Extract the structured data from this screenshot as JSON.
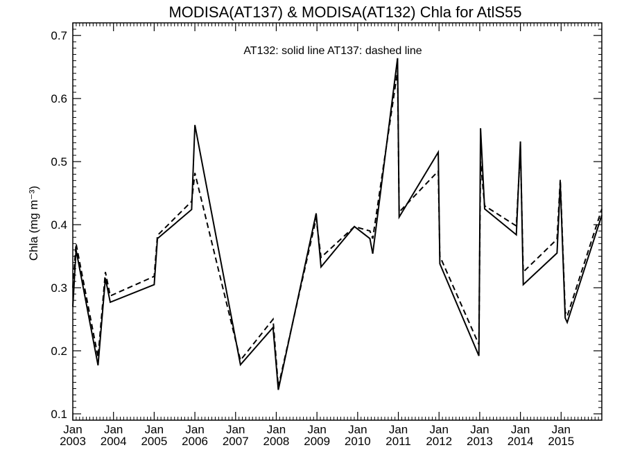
{
  "chart_data": {
    "type": "line",
    "title": "MODISA(AT137) & MODISA(AT132)  Chla for AtlS55",
    "xlabel": "",
    "ylabel": "Chla (mg m⁻³)",
    "xlim": [
      2003.0,
      2016.0
    ],
    "ylim": [
      0.09,
      0.72
    ],
    "yticks": [
      "0.1",
      "0.2",
      "0.3",
      "0.4",
      "0.5",
      "0.6",
      "0.7"
    ],
    "xticks": [
      {
        "top": "Jan",
        "bottom": "2003",
        "x": 2003
      },
      {
        "top": "Jan",
        "bottom": "2004",
        "x": 2004
      },
      {
        "top": "Jan",
        "bottom": "2005",
        "x": 2005
      },
      {
        "top": "Jan",
        "bottom": "2006",
        "x": 2006
      },
      {
        "top": "Jan",
        "bottom": "2007",
        "x": 2007
      },
      {
        "top": "Jan",
        "bottom": "2008",
        "x": 2008
      },
      {
        "top": "Jan",
        "bottom": "2009",
        "x": 2009
      },
      {
        "top": "Jan",
        "bottom": "2010",
        "x": 2010
      },
      {
        "top": "Jan",
        "bottom": "2011",
        "x": 2011
      },
      {
        "top": "Jan",
        "bottom": "2012",
        "x": 2012
      },
      {
        "top": "Jan",
        "bottom": "2013",
        "x": 2013
      },
      {
        "top": "Jan",
        "bottom": "2014",
        "x": 2014
      },
      {
        "top": "Jan",
        "bottom": "2015",
        "x": 2015
      }
    ],
    "annotation": "AT132: solid line   AT137: dashed line",
    "series": [
      {
        "style": "solid",
        "x": [
          2003.0,
          2003.08,
          2003.62,
          2003.8,
          2003.92,
          2005.0,
          2005.08,
          2005.92,
          2006.0,
          2007.12,
          2007.92,
          2008.05,
          2008.98,
          2009.1,
          2009.92,
          2010.3,
          2010.37,
          2010.98,
          2011.02,
          2011.98,
          2012.02,
          2012.98,
          2013.02,
          2013.12,
          2013.9,
          2014.0,
          2014.07,
          2014.9,
          2014.98,
          2015.1,
          2015.15,
          2016.0
        ],
        "y": [
          0.27,
          0.36,
          0.177,
          0.315,
          0.277,
          0.305,
          0.378,
          0.424,
          0.558,
          0.178,
          0.237,
          0.138,
          0.418,
          0.333,
          0.397,
          0.378,
          0.354,
          0.664,
          0.412,
          0.515,
          0.338,
          0.192,
          0.553,
          0.425,
          0.384,
          0.532,
          0.305,
          0.355,
          0.465,
          0.252,
          0.245,
          0.415
        ]
      },
      {
        "style": "dashed",
        "x": [
          2003.0,
          2003.08,
          2003.62,
          2003.8,
          2003.92,
          2005.0,
          2005.08,
          2005.92,
          2006.0,
          2007.12,
          2007.92,
          2008.05,
          2008.98,
          2009.1,
          2009.92,
          2010.3,
          2010.37,
          2010.98,
          2011.02,
          2011.98,
          2012.02,
          2012.98,
          2013.02,
          2013.12,
          2013.9,
          2014.0,
          2014.07,
          2014.9,
          2014.98,
          2015.1,
          2015.15,
          2016.0
        ],
        "y": [
          0.3,
          0.37,
          0.19,
          0.325,
          0.287,
          0.318,
          0.383,
          0.437,
          0.482,
          0.185,
          0.25,
          0.143,
          0.41,
          0.348,
          0.397,
          0.39,
          0.378,
          0.644,
          0.42,
          0.485,
          0.35,
          0.21,
          0.5,
          0.43,
          0.398,
          0.52,
          0.325,
          0.377,
          0.472,
          0.262,
          0.255,
          0.425
        ]
      }
    ],
    "grid": false
  }
}
